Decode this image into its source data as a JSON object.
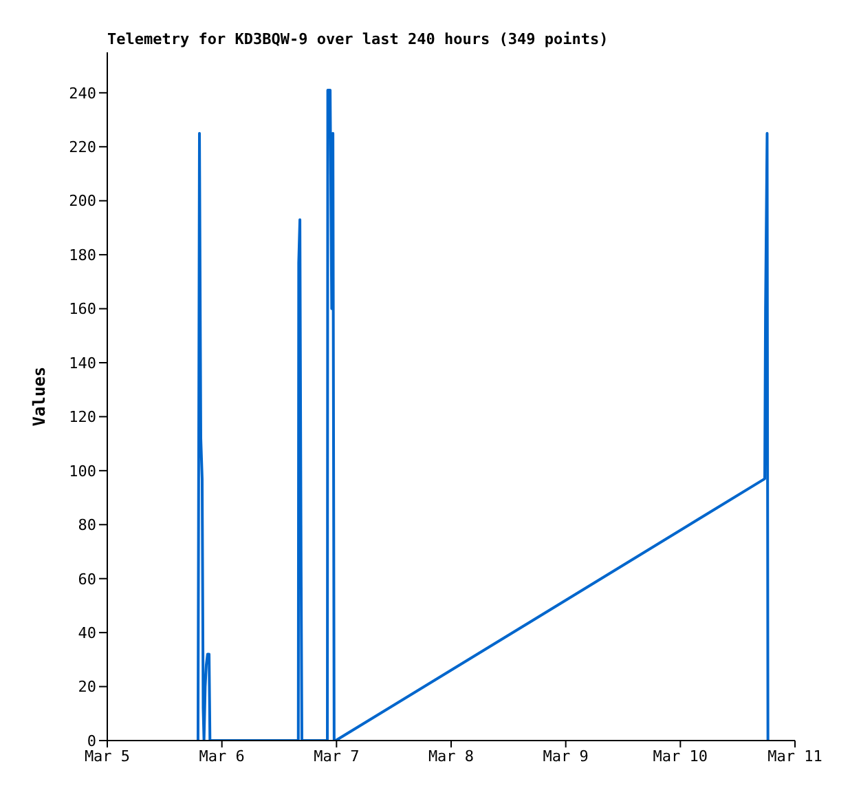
{
  "chart_data": {
    "type": "line",
    "title": "Telemetry for KD3BQW-9 over last 240 hours (349 points)",
    "ylabel": "Values",
    "x": [
      "--03-05T19:00",
      "--03-05T19:18",
      "--03-05T19:35",
      "--03-05T19:52",
      "--03-05T20:05",
      "--03-05T20:15",
      "--03-05T20:30",
      "--03-05T20:44",
      "--03-05T21:00",
      "--03-05T21:19",
      "--03-05T21:30",
      "--03-06T16:00",
      "--03-06T16:05",
      "--03-06T16:20",
      "--03-06T16:35",
      "--03-06T16:45",
      "--03-06T22:05",
      "--03-06T22:10",
      "--03-06T22:40",
      "--03-06T23:00",
      "--03-06T23:15",
      "--03-06T23:30",
      "--03-06T23:50",
      "--03-10T17:40",
      "--03-10T17:50",
      "--03-10T18:10",
      "--03-10T18:20"
    ],
    "series": [
      {
        "color": "#0066cc",
        "values": [
          0,
          225,
          112,
          97,
          12,
          0,
          20,
          28,
          32,
          32,
          0,
          0,
          177,
          193,
          65,
          0,
          0,
          241,
          241,
          160,
          225,
          0,
          0,
          97,
          160,
          225,
          0
        ]
      }
    ],
    "xlim": [
      "--03-05",
      "--03-11"
    ],
    "xticks": [
      {
        "value": "--03-05",
        "label": "Mar 5"
      },
      {
        "value": "--03-06",
        "label": "Mar 6"
      },
      {
        "value": "--03-07",
        "label": "Mar 7"
      },
      {
        "value": "--03-08",
        "label": "Mar 8"
      },
      {
        "value": "--03-09",
        "label": "Mar 9"
      },
      {
        "value": "--03-10",
        "label": "Mar 10"
      },
      {
        "value": "--03-11",
        "label": "Mar 11"
      }
    ],
    "ylim": [
      0,
      255
    ],
    "yticks": [
      0,
      20,
      40,
      60,
      80,
      100,
      120,
      140,
      160,
      180,
      200,
      220,
      240
    ],
    "grid": false,
    "legend": false,
    "marker": "none",
    "line_style": "solid"
  }
}
